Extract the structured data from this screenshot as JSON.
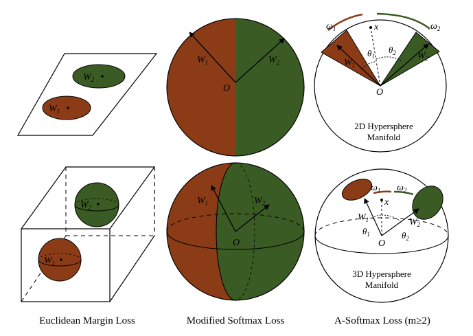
{
  "colors": {
    "brown": "#8b3c17",
    "green": "#3b5b24",
    "stroke": "#000000",
    "background": "#ffffff"
  },
  "labels": {
    "w1": "W",
    "w2": "W",
    "sub1": "1",
    "sub2": "2",
    "origin": "O",
    "x": "x",
    "omega": "ω",
    "theta": "θ"
  },
  "captions": {
    "euclidean": "Euclidean Margin Loss",
    "modified": "Modified Softmax Loss",
    "asoftmax": "A-Softmax Loss (m≥2)"
  },
  "inner_captions": {
    "hyper2d_line1": "2D Hypersphere",
    "hyper2d_line2": "Manifold",
    "hyper3d_line1": "3D Hypersphere",
    "hyper3d_line2": "Manifold"
  }
}
